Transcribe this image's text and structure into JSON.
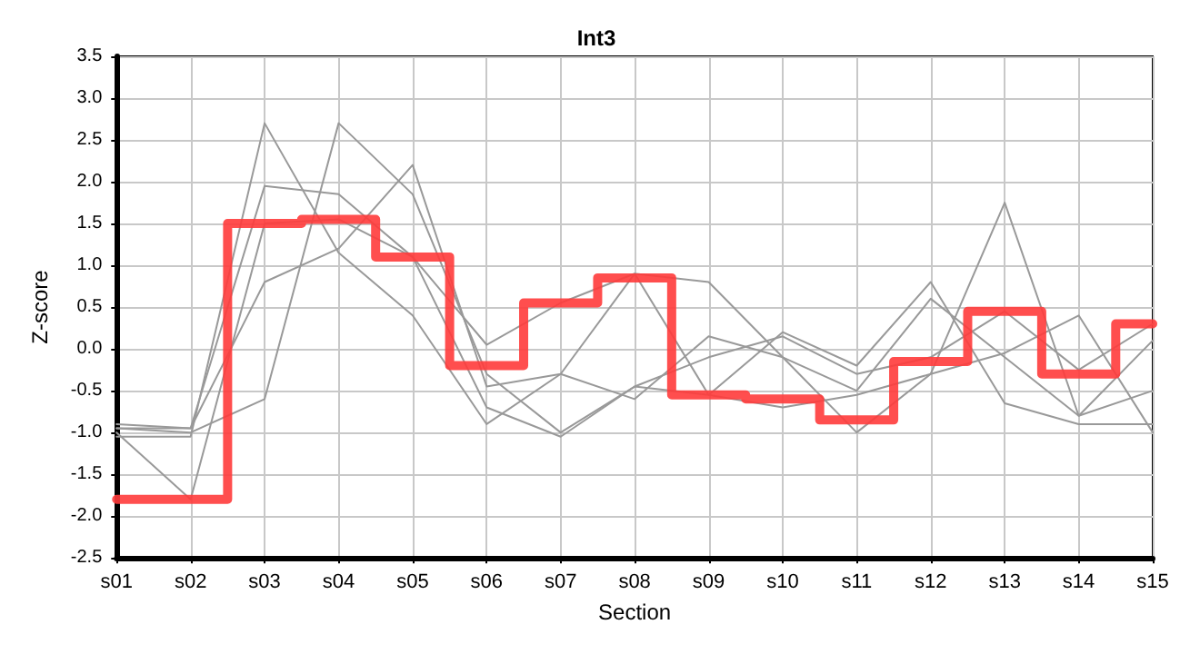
{
  "chart_data": {
    "type": "line",
    "title": "Int3",
    "xlabel": "Section",
    "ylabel": "Z-score",
    "categories": [
      "s01",
      "s02",
      "s03",
      "s04",
      "s05",
      "s06",
      "s07",
      "s08",
      "s09",
      "s10",
      "s11",
      "s12",
      "s13",
      "s14",
      "s15"
    ],
    "series": [
      {
        "color": "#999999",
        "values": [
          -1.05,
          -1.05,
          2.7,
          1.15,
          0.4,
          -0.9,
          -0.3,
          -0.6,
          0.15,
          -0.1,
          -0.5,
          0.6,
          -0.1,
          -0.8,
          -0.5
        ]
      },
      {
        "color": "#999999",
        "values": [
          -0.95,
          -1.0,
          -0.6,
          2.7,
          1.85,
          -0.3,
          -1.0,
          -0.45,
          -0.55,
          0.2,
          -0.2,
          0.8,
          -0.65,
          -0.9,
          -0.9
        ]
      },
      {
        "color": "#999999",
        "values": [
          -1.0,
          -1.8,
          1.5,
          1.55,
          1.1,
          0.05,
          0.55,
          0.9,
          0.8,
          -0.1,
          -1.0,
          -0.3,
          1.75,
          -0.8,
          0.1
        ]
      },
      {
        "color": "#999999",
        "values": [
          -0.9,
          -0.95,
          1.95,
          1.85,
          1.1,
          -0.7,
          -1.05,
          -0.45,
          -0.1,
          0.15,
          -0.3,
          -0.1,
          0.45,
          -0.25,
          0.3
        ]
      },
      {
        "color": "#999999",
        "values": [
          -0.95,
          -0.95,
          0.8,
          1.2,
          2.2,
          -0.45,
          -0.3,
          0.9,
          -0.55,
          -0.7,
          -0.55,
          -0.3,
          -0.05,
          0.4,
          -1.0
        ]
      },
      {
        "type": "step",
        "color": "#ff3b3b",
        "values": [
          -1.8,
          -1.8,
          1.5,
          1.55,
          1.1,
          -0.2,
          0.55,
          0.85,
          -0.55,
          -0.6,
          -0.85,
          -0.15,
          0.45,
          -0.3,
          0.3
        ]
      }
    ],
    "ylim": [
      -2.5,
      3.5
    ],
    "yticks": [
      {
        "value": -2.5,
        "label": "-2.5"
      },
      {
        "value": -2,
        "label": "-2.0"
      },
      {
        "value": -1.5,
        "label": "-1.5"
      },
      {
        "value": -1,
        "label": "-1.0"
      },
      {
        "value": -0.5,
        "label": "-0.5"
      },
      {
        "value": 0,
        "label": "0.0"
      },
      {
        "value": 0.5,
        "label": "0.5"
      },
      {
        "value": 1,
        "label": "1.0"
      },
      {
        "value": 1.5,
        "label": "1.5"
      },
      {
        "value": 2,
        "label": "2.0"
      },
      {
        "value": 2.5,
        "label": "2.5"
      },
      {
        "value": 3,
        "label": "3.0"
      },
      {
        "value": 3.5,
        "label": "3.5"
      }
    ],
    "grid": true,
    "marker": "none",
    "line_style": "solid"
  }
}
